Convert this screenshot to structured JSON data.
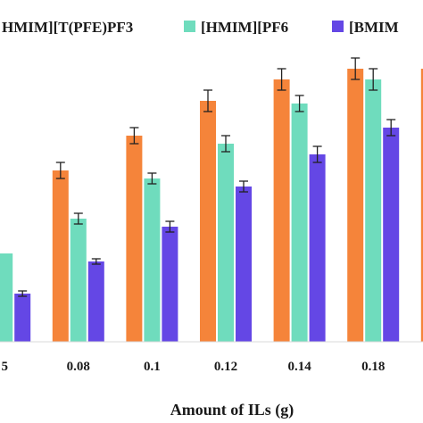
{
  "chart_data": {
    "type": "bar",
    "xlabel": "Amount of ILs (g)",
    "ylabel": "",
    "categories": [
      "5",
      "0.08",
      "0.1",
      "0.12",
      "0.14",
      "0.18",
      ""
    ],
    "series": [
      {
        "name": "HMIM][T(PFE)PF3",
        "color": "#f5843a",
        "values": [
          null,
          64,
          77,
          90,
          98,
          102,
          102
        ],
        "errors": [
          null,
          3,
          3,
          4,
          4,
          4,
          4
        ]
      },
      {
        "name": "[HMIM][PF6",
        "color": "#6fdcbd",
        "values": [
          33,
          46,
          61,
          74,
          89,
          98,
          null
        ],
        "errors": [
          null,
          2,
          2,
          3,
          3,
          4,
          null
        ]
      },
      {
        "name": "[BMIM",
        "color": "#6447e5",
        "values": [
          18,
          30,
          43,
          58,
          70,
          80,
          null
        ],
        "errors": [
          1,
          1,
          2,
          2,
          3,
          3,
          null
        ]
      }
    ],
    "ylim": [
      0,
      120
    ],
    "grid": false,
    "legend_position": "top"
  }
}
